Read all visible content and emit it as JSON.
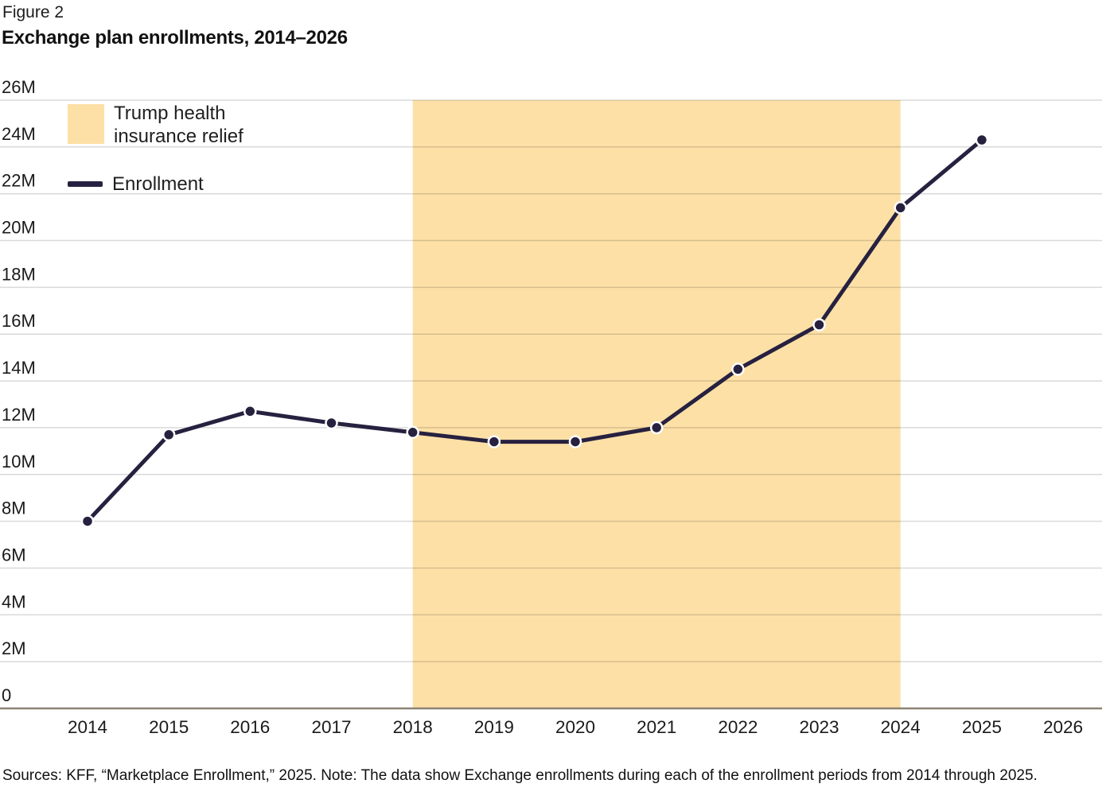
{
  "figure": {
    "label": "Figure 2",
    "title": "Exchange plan enrollments, 2014–2026"
  },
  "legend": {
    "band_label": "Trump health insurance relief",
    "line_label": "Enrollment"
  },
  "chart_data": {
    "type": "line",
    "title": "Exchange plan enrollments, 2014–2026",
    "unit": "millions of enrollees",
    "x": [
      2014,
      2015,
      2016,
      2017,
      2018,
      2019,
      2020,
      2021,
      2022,
      2023,
      2024,
      2025
    ],
    "series": [
      {
        "name": "Enrollment",
        "values": [
          8.0,
          11.7,
          12.7,
          12.2,
          11.8,
          11.4,
          11.4,
          12.0,
          14.5,
          16.4,
          21.4,
          24.3
        ]
      }
    ],
    "x_ticks": [
      2014,
      2015,
      2016,
      2017,
      2018,
      2019,
      2020,
      2021,
      2022,
      2023,
      2024,
      2025,
      2026
    ],
    "y_ticks": [
      {
        "value": 0,
        "label": "0"
      },
      {
        "value": 2,
        "label": "2M"
      },
      {
        "value": 4,
        "label": "4M"
      },
      {
        "value": 6,
        "label": "6M"
      },
      {
        "value": 8,
        "label": "8M"
      },
      {
        "value": 10,
        "label": "10M"
      },
      {
        "value": 12,
        "label": "12M"
      },
      {
        "value": 14,
        "label": "14M"
      },
      {
        "value": 16,
        "label": "16M"
      },
      {
        "value": 18,
        "label": "18M"
      },
      {
        "value": 20,
        "label": "20M"
      },
      {
        "value": 22,
        "label": "22M"
      },
      {
        "value": 24,
        "label": "24M"
      },
      {
        "value": 26,
        "label": "26M"
      }
    ],
    "ylim": [
      0,
      26
    ],
    "xlim": [
      2014,
      2026
    ],
    "grid": true,
    "legend_position": "top-left",
    "shaded_region": {
      "label": "Trump health insurance relief",
      "x_start": 2018,
      "x_end": 2024
    },
    "colors": {
      "line": "#272140",
      "band": "#fce0a6",
      "axis": "#8c8273",
      "grid": "rgba(0,0,0,0.15)",
      "text": "#1a1a1a"
    }
  },
  "note": "Sources: KFF, “Marketplace Enrollment,” 2025. Note: The data show Exchange enrollments during each of the enrollment periods from 2014 through 2025."
}
